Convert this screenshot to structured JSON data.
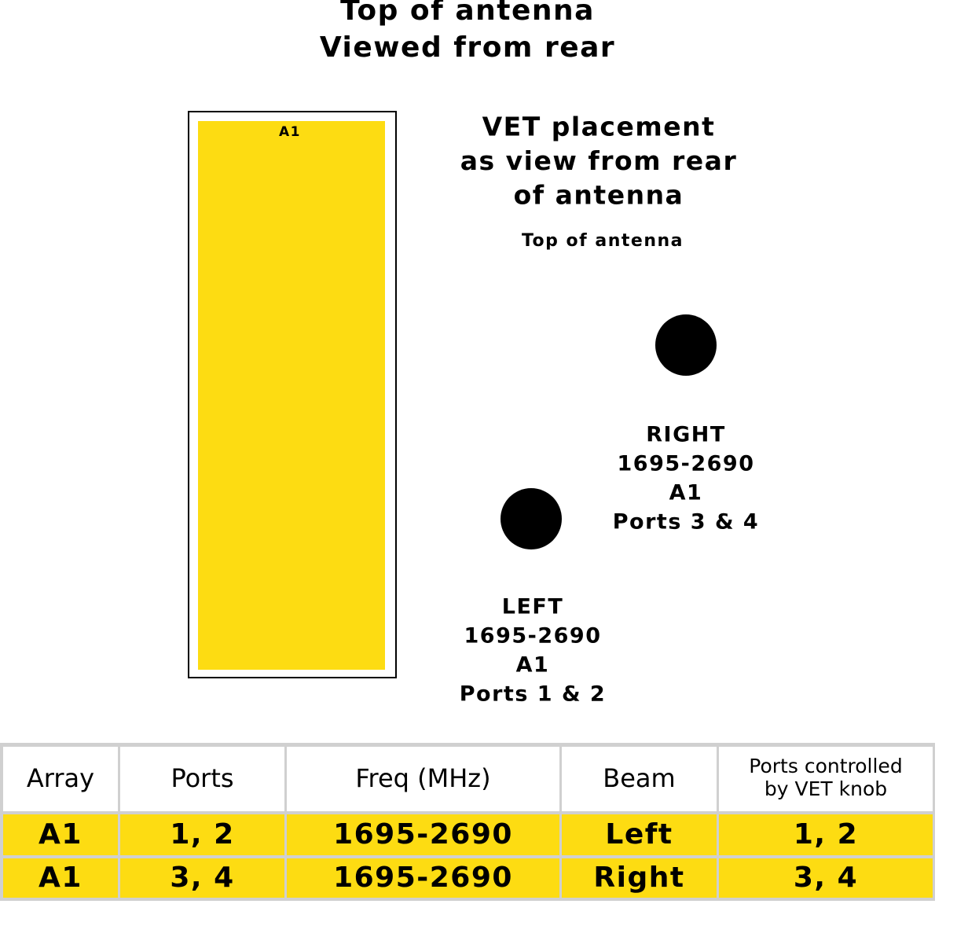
{
  "header": {
    "title": [
      "Top of antenna",
      "Viewed from rear"
    ]
  },
  "array": {
    "label": "A1"
  },
  "placement": {
    "title": [
      "VET placement",
      "as view from rear",
      "of antenna"
    ],
    "subtitle": "Top of antenna"
  },
  "ports": [
    {
      "lines": [
        "RIGHT",
        "1695-2690",
        "A1",
        "Ports 3 & 4"
      ]
    },
    {
      "lines": [
        "LEFT",
        "1695-2690",
        "A1",
        "Ports 1 & 2"
      ]
    }
  ],
  "table": {
    "header": [
      "Array",
      "Ports",
      "Freq (MHz)",
      "Beam",
      [
        "Ports controlled",
        "by VET knob"
      ]
    ],
    "rows": [
      [
        "A1",
        "1, 2",
        "1695-2690",
        "Left",
        "1, 2"
      ],
      [
        "A1",
        "3, 4",
        "1695-2690",
        "Right",
        "3, 4"
      ]
    ]
  }
}
